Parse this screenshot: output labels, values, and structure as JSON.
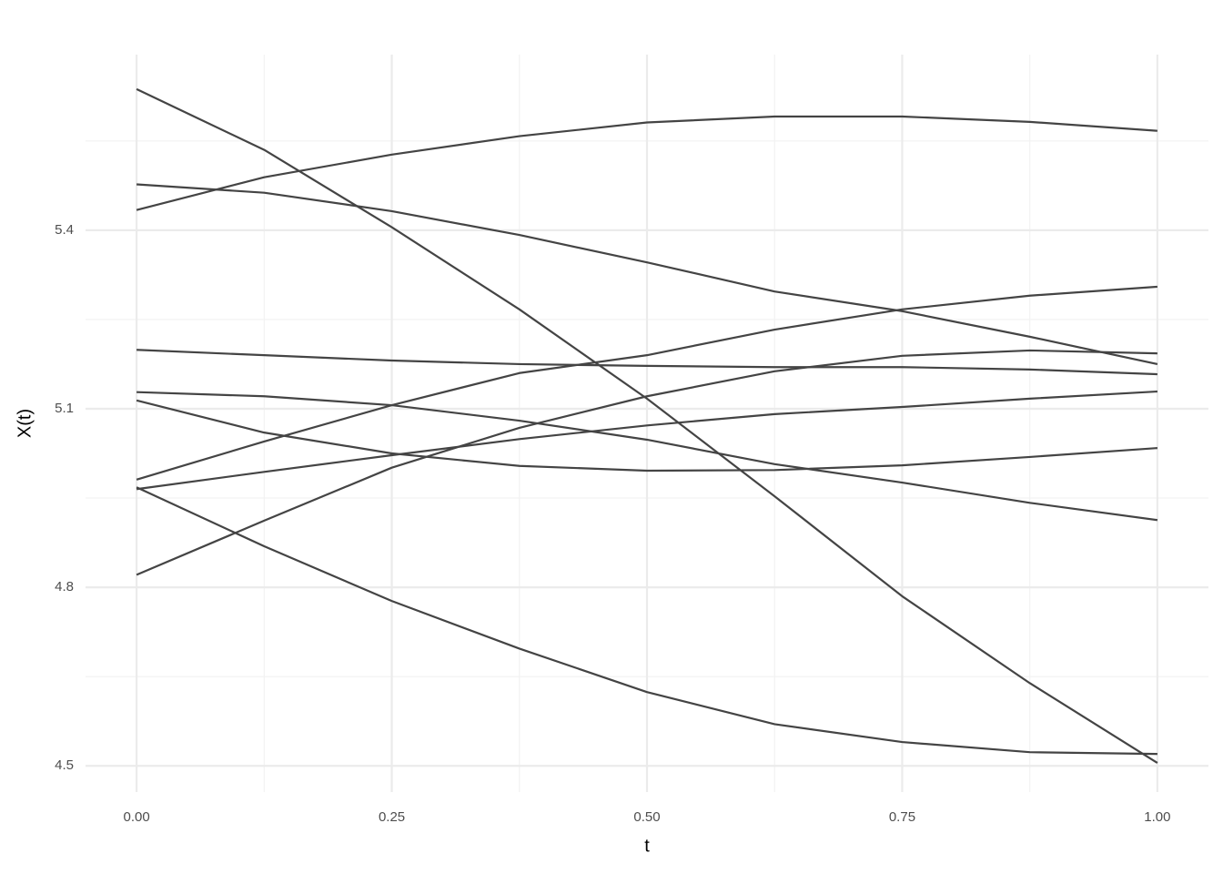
{
  "chart_data": {
    "type": "line",
    "xlabel": "t",
    "ylabel": "X(t)",
    "x": [
      0,
      0.125,
      0.25,
      0.375,
      0.5,
      0.625,
      0.75,
      0.875,
      1
    ],
    "series": [
      {
        "color": "#444444",
        "values": [
          5.637,
          5.535,
          5.405,
          5.267,
          5.117,
          4.953,
          4.785,
          4.639,
          4.505
        ]
      },
      {
        "color": "#444444",
        "values": [
          5.434,
          5.489,
          5.527,
          5.558,
          5.581,
          5.591,
          5.591,
          5.582,
          5.567
        ]
      },
      {
        "color": "#444444",
        "values": [
          5.477,
          5.463,
          5.432,
          5.392,
          5.346,
          5.297,
          5.264,
          5.221,
          5.175
        ]
      },
      {
        "color": "#444444",
        "values": [
          5.199,
          5.19,
          5.181,
          5.175,
          5.172,
          5.17,
          5.17,
          5.166,
          5.158
        ]
      },
      {
        "color": "#444444",
        "values": [
          4.981,
          5.045,
          5.106,
          5.16,
          5.19,
          5.233,
          5.267,
          5.29,
          5.305
        ]
      },
      {
        "color": "#444444",
        "values": [
          4.821,
          4.912,
          5.001,
          5.068,
          5.121,
          5.163,
          5.189,
          5.198,
          5.193
        ]
      },
      {
        "color": "#444444",
        "values": [
          5.128,
          5.121,
          5.106,
          5.08,
          5.048,
          5.007,
          4.976,
          4.942,
          4.913
        ]
      },
      {
        "color": "#444444",
        "values": [
          5.114,
          5.06,
          5.025,
          5.004,
          4.996,
          4.997,
          5.005,
          5.019,
          5.034
        ]
      },
      {
        "color": "#444444",
        "values": [
          4.965,
          4.994,
          5.022,
          5.049,
          5.072,
          5.091,
          5.103,
          5.117,
          5.129
        ]
      },
      {
        "color": "#444444",
        "values": [
          4.968,
          4.869,
          4.777,
          4.697,
          4.624,
          4.57,
          4.54,
          4.523,
          4.52
        ]
      }
    ],
    "xlim": [
      -0.05,
      1.05
    ],
    "ylim": [
      4.456,
      5.695
    ],
    "xticks": [
      {
        "value": 0,
        "label": "0.00"
      },
      0.25,
      {
        "value": 0.5,
        "label": "0.50"
      },
      0.75,
      {
        "value": 1,
        "label": "1.00"
      }
    ],
    "yticks": [
      {
        "value": 4.5,
        "label": "4.5"
      },
      {
        "value": 4.8,
        "label": "4.8"
      },
      {
        "value": 5.1,
        "label": "5.1"
      },
      {
        "value": 5.4,
        "label": "5.4"
      }
    ],
    "xticks_minor": [
      0.125,
      0.375,
      0.625,
      0.875
    ],
    "yticks_minor": [
      4.65,
      4.95,
      5.25,
      5.55
    ],
    "grid": true
  }
}
